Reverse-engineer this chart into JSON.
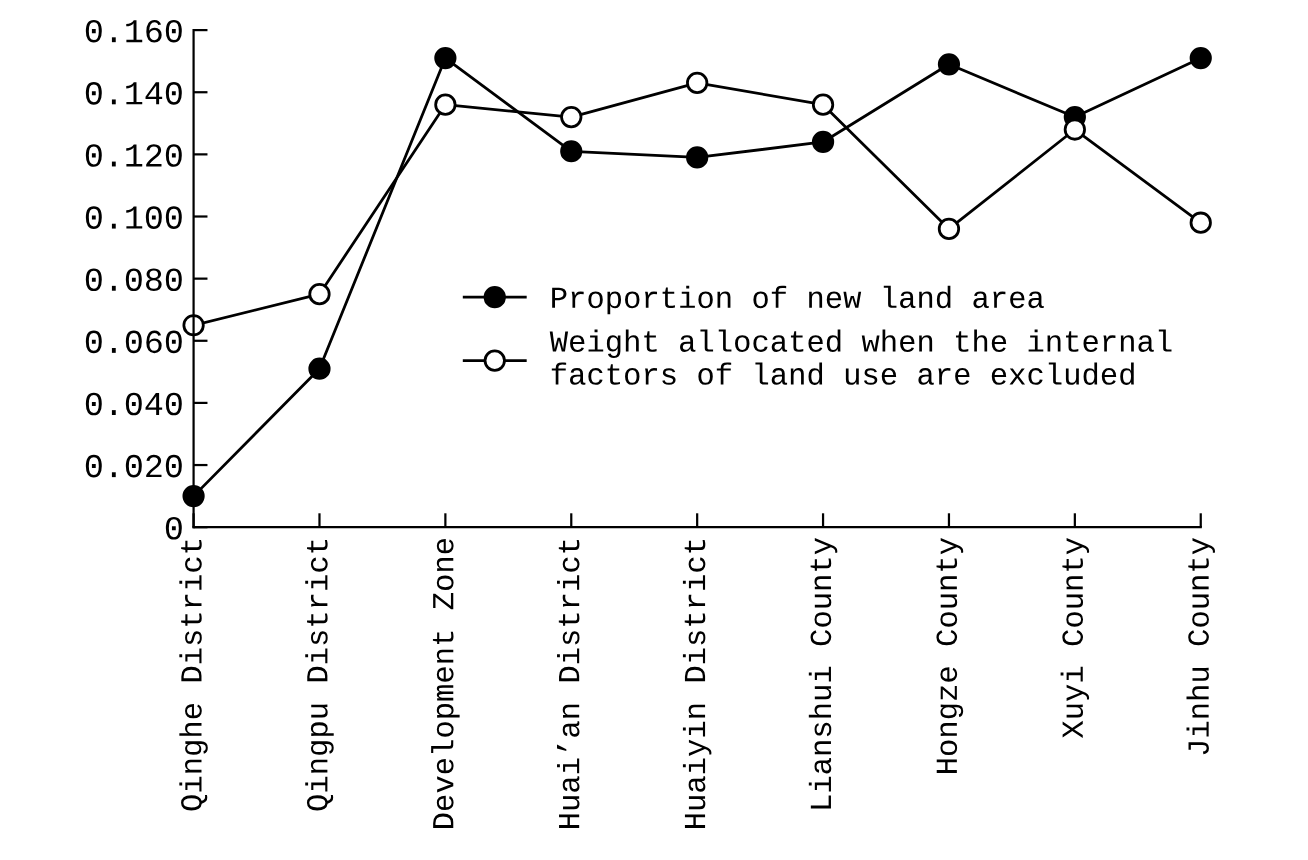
{
  "chart_data": {
    "type": "line",
    "categories": [
      "Qinghe District",
      "Qingpu District",
      "Development Zone",
      "Huai’an District",
      "Huaiyin District",
      "Lianshui County",
      "Hongze County",
      "Xuyi County",
      "Jinhu County"
    ],
    "series": [
      {
        "name": "Proportion of new land area",
        "color": "#000000",
        "marker": "circle",
        "values": [
          0.01,
          0.051,
          0.151,
          0.121,
          0.119,
          0.124,
          0.149,
          0.132,
          0.151
        ]
      },
      {
        "name": "Weight allocated when the internal\nfactors of land use are excluded",
        "color": "#000000",
        "marker": "open circle",
        "values": [
          0.065,
          0.075,
          0.136,
          0.132,
          0.143,
          0.136,
          0.096,
          0.128,
          0.098
        ]
      }
    ],
    "ylim": [
      0,
      0.16
    ],
    "yticks": [
      {
        "value": 0,
        "label": "0"
      },
      {
        "value": 0.02,
        "label": "0.020"
      },
      {
        "value": 0.04,
        "label": "0.040"
      },
      {
        "value": 0.06,
        "label": "0.060"
      },
      {
        "value": 0.08,
        "label": "0.080"
      },
      {
        "value": 0.1,
        "label": "0.100"
      },
      {
        "value": 0.12,
        "label": "0.120"
      },
      {
        "value": 0.14,
        "label": "0.140"
      },
      {
        "value": 0.16,
        "label": "0.160"
      }
    ],
    "grid": false,
    "legend": "right",
    "line_style": "solid"
  }
}
